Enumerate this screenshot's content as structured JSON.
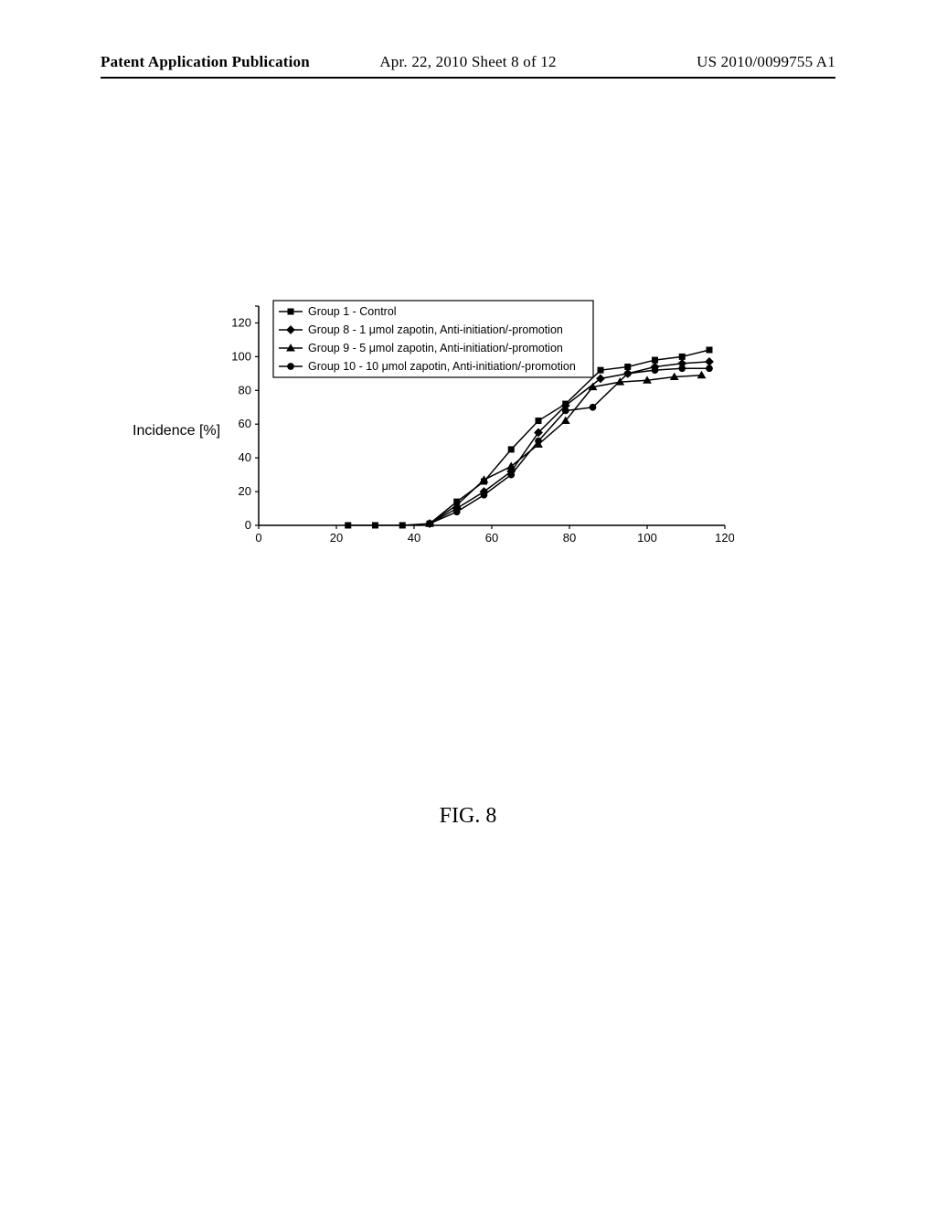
{
  "header": {
    "left": "Patent Application Publication",
    "center": "Apr. 22, 2010  Sheet 8 of 12",
    "right": "US 2010/0099755 A1"
  },
  "figure_caption": "FIG. 8",
  "chart": {
    "type": "line",
    "ylabel": "Incidence [%]",
    "label_fontsize": 16,
    "title_fontsize": 13,
    "xlim": [
      0,
      120
    ],
    "ylim": [
      0,
      130
    ],
    "xtick_step": 20,
    "ytick_step": 20,
    "xtick_labels": [
      "0",
      "20",
      "40",
      "60",
      "80",
      "100",
      "120"
    ],
    "ytick_labels": [
      "0",
      "20",
      "40",
      "60",
      "80",
      "100",
      "120"
    ],
    "tick_fontsize": 13,
    "line_color": "#000000",
    "line_width": 1.5,
    "marker_size": 7,
    "background_color": "#ffffff",
    "axis_color": "#000000",
    "legend": {
      "position": "top-left-inset",
      "border_color": "#000000",
      "font_family": "Arial",
      "font_size": 12.5,
      "items": [
        {
          "marker": "square",
          "label": "Group 1 - Control"
        },
        {
          "marker": "diamond",
          "label": "Group 8 - 1 μmol zapotin, Anti-initiation/-promotion"
        },
        {
          "marker": "triangle",
          "label": "Group 9 - 5 μmol zapotin, Anti-initiation/-promotion"
        },
        {
          "marker": "circle",
          "label": "Group 10 - 10 μmol zapotin, Anti-initiation/-promotion"
        }
      ]
    },
    "series": [
      {
        "name": "Group 1 - Control",
        "marker": "square",
        "color": "#000000",
        "x": [
          23,
          30,
          37,
          44,
          51,
          58,
          65,
          72,
          79,
          88,
          95,
          102,
          109,
          116
        ],
        "y": [
          0,
          0,
          0,
          1,
          14,
          26,
          45,
          62,
          72,
          92,
          94,
          98,
          100,
          104
        ]
      },
      {
        "name": "Group 8",
        "marker": "diamond",
        "color": "#000000",
        "x": [
          44,
          51,
          58,
          65,
          72,
          79,
          88,
          95,
          102,
          109,
          116
        ],
        "y": [
          1,
          10,
          20,
          32,
          55,
          71,
          87,
          90,
          94,
          96,
          97
        ]
      },
      {
        "name": "Group 9",
        "marker": "triangle",
        "color": "#000000",
        "x": [
          44,
          51,
          58,
          65,
          72,
          79,
          86,
          93,
          100,
          107,
          114
        ],
        "y": [
          1,
          12,
          27,
          35,
          48,
          62,
          82,
          85,
          86,
          88,
          89
        ]
      },
      {
        "name": "Group 10",
        "marker": "circle",
        "color": "#000000",
        "x": [
          44,
          51,
          58,
          65,
          72,
          79,
          86,
          95,
          102,
          109,
          116
        ],
        "y": [
          1,
          8,
          18,
          30,
          50,
          68,
          70,
          90,
          92,
          93,
          93
        ]
      }
    ]
  }
}
